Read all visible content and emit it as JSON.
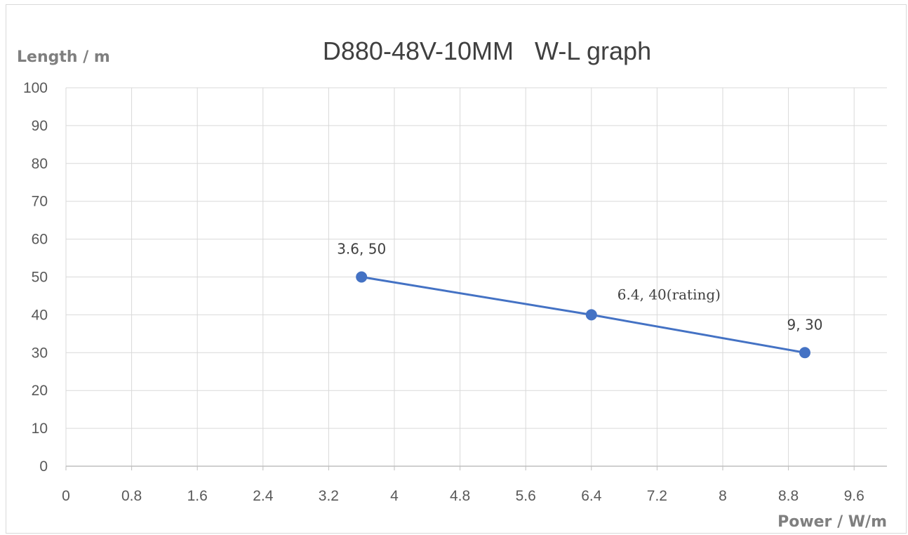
{
  "chart_data": {
    "type": "scatter",
    "title": "D880-48V-10MM   W-L graph",
    "xlabel": "Power / W/m",
    "ylabel": "Length / m",
    "xlim": [
      0,
      10
    ],
    "ylim": [
      0,
      100
    ],
    "x_ticks": [
      "0",
      "0.8",
      "1.6",
      "2.4",
      "3.2",
      "4",
      "4.8",
      "5.6",
      "6.4",
      "7.2",
      "8",
      "8.8",
      "9.6"
    ],
    "y_ticks": [
      "0",
      "10",
      "20",
      "30",
      "40",
      "50",
      "60",
      "70",
      "80",
      "90",
      "100"
    ],
    "grid": true,
    "legend": "none",
    "series": [
      {
        "points": [
          {
            "x": 3.6,
            "y": 50,
            "label": "3.6, 50"
          },
          {
            "x": 6.4,
            "y": 40,
            "label": "6.4, 40(rating)"
          },
          {
            "x": 9,
            "y": 30,
            "label": "9, 30"
          }
        ]
      }
    ],
    "colors": {
      "series": "#4472c4",
      "grid": "#d9d9d9",
      "axis": "#bfbfbf"
    }
  }
}
